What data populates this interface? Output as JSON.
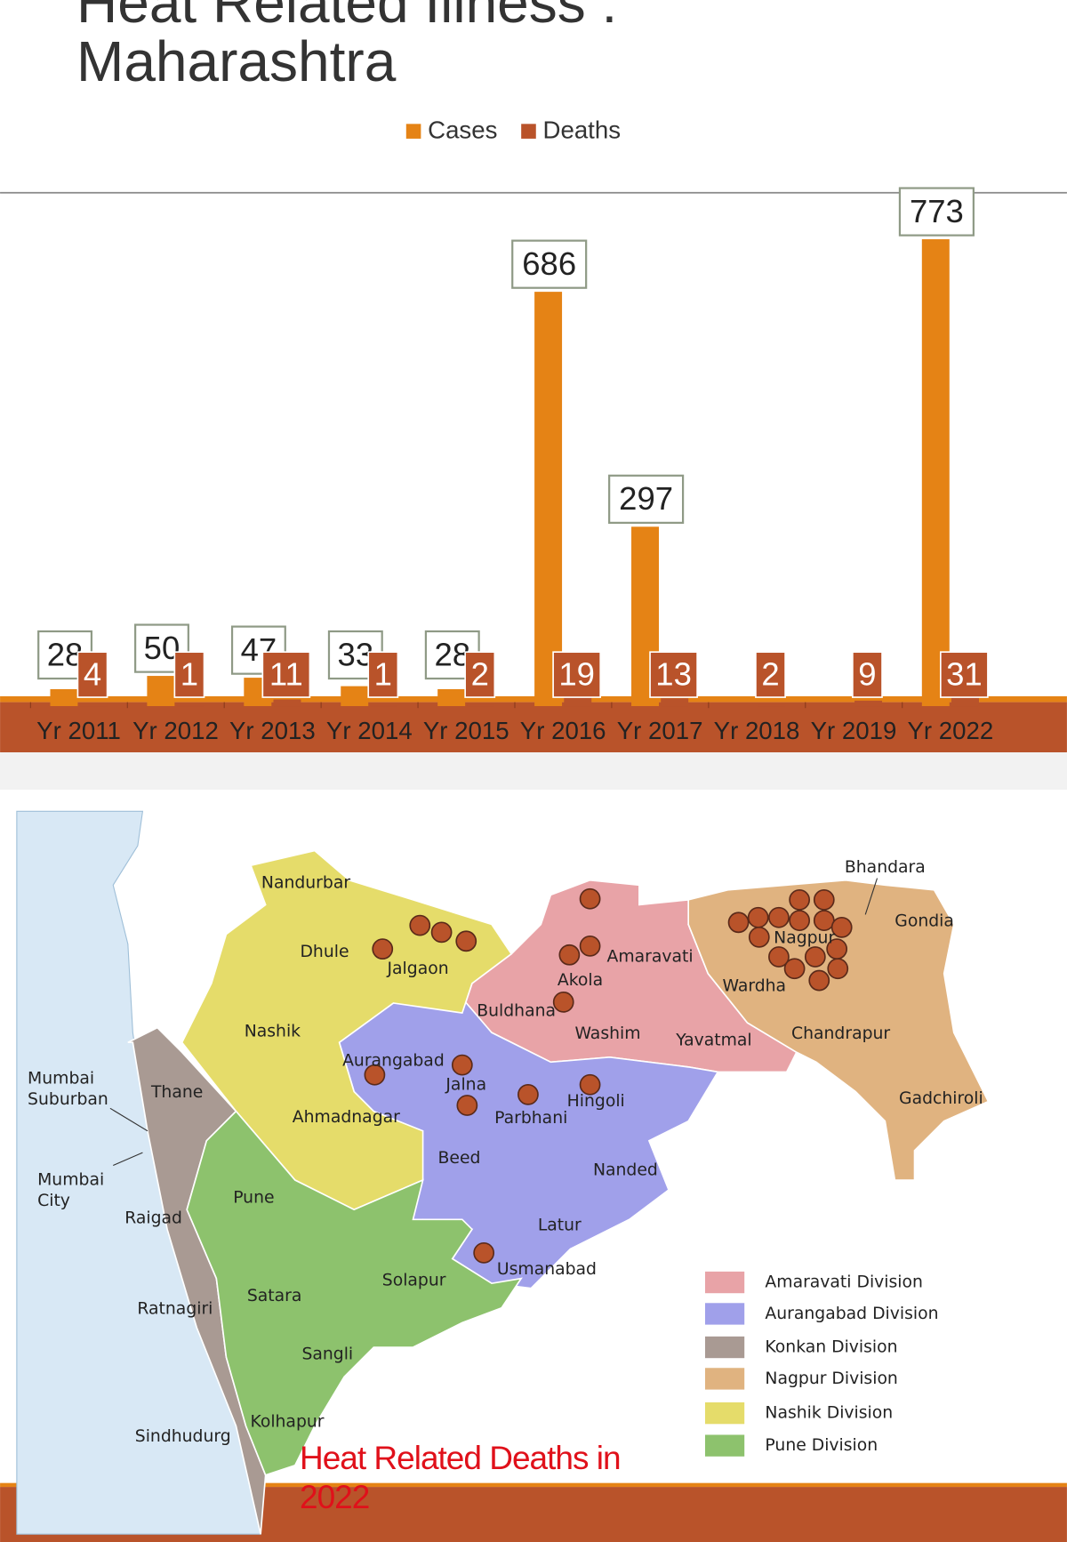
{
  "chart_data": {
    "type": "bar",
    "title": "Heat Related Illness : Maharashtra",
    "categories": [
      "Yr 2011",
      "Yr 2012",
      "Yr 2013",
      "Yr 2014",
      "Yr 2015",
      "Yr 2016",
      "Yr 2017",
      "Yr 2018",
      "Yr 2019",
      "Yr 2022"
    ],
    "series": [
      {
        "name": "Cases",
        "color": "#e58315",
        "values": [
          28,
          50,
          47,
          33,
          28,
          686,
          297,
          null,
          null,
          773
        ]
      },
      {
        "name": "Deaths",
        "color": "#b9532a",
        "values": [
          4,
          1,
          11,
          1,
          2,
          19,
          13,
          2,
          9,
          31
        ]
      }
    ],
    "ylim": [
      0,
      850
    ]
  },
  "map": {
    "title": "Heat Related Deaths in 2022",
    "districts": [
      "Nandurbar",
      "Dhule",
      "Jalgaon",
      "Nashik",
      "Mumbai Suburban",
      "Thane",
      "Mumbai City",
      "Aurangabad",
      "Jalna",
      "Ahmadnagar",
      "Pune",
      "Raigad",
      "Beed",
      "Parbhani",
      "Hingoli",
      "Nanded",
      "Latur",
      "Usmanabad",
      "Solapur",
      "Satara",
      "Ratnagiri",
      "Sangli",
      "Kolhapur",
      "Sindhudurg",
      "Buldhana",
      "Akola",
      "Amaravati",
      "Washim",
      "Yavatmal",
      "Wardha",
      "Nagpur",
      "Bhandara",
      "Gondia",
      "Chandrapur",
      "Gadchiroli"
    ],
    "legend": [
      {
        "label": "Amaravati Division",
        "color": "#e8a3a7"
      },
      {
        "label": "Aurangabad Division",
        "color": "#a0a0ea"
      },
      {
        "label": "Konkan Division",
        "color": "#a99a93"
      },
      {
        "label": "Nagpur Division",
        "color": "#e0b380"
      },
      {
        "label": "Nashik Division",
        "color": "#e5dc6a"
      },
      {
        "label": "Pune Division",
        "color": "#8dc26d"
      }
    ]
  }
}
